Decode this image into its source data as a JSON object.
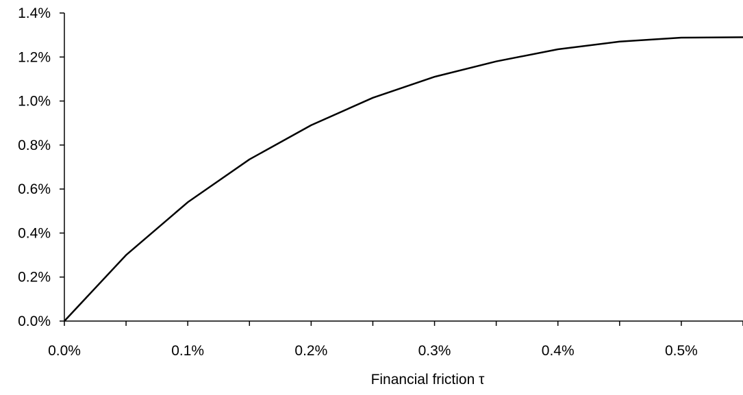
{
  "chart_data": {
    "type": "line",
    "title": "",
    "xlabel": "Financial friction τ",
    "ylabel": "",
    "x": [
      0.0,
      0.05,
      0.1,
      0.15,
      0.2,
      0.25,
      0.3,
      0.35,
      0.4,
      0.45,
      0.5,
      0.55
    ],
    "series": [
      {
        "name": "",
        "values": [
          0.0,
          0.3,
          0.54,
          0.735,
          0.89,
          1.015,
          1.11,
          1.18,
          1.235,
          1.27,
          1.288,
          1.29
        ]
      }
    ],
    "xlim": [
      0.0,
      0.55
    ],
    "ylim": [
      0.0,
      1.4
    ],
    "xticks": [
      0.0,
      0.1,
      0.2,
      0.3,
      0.4,
      0.5
    ],
    "xtick_labels": [
      "0.0%",
      "0.1%",
      "0.2%",
      "0.3%",
      "0.4%",
      "0.5%"
    ],
    "yticks": [
      0.0,
      0.2,
      0.4,
      0.6,
      0.8,
      1.0,
      1.2,
      1.4
    ],
    "ytick_labels": [
      "0.0%",
      "0.2%",
      "0.4%",
      "0.6%",
      "0.8%",
      "1.0%",
      "1.2%",
      "1.4%"
    ],
    "grid": false,
    "legend": "none",
    "line_color": "#000000",
    "axis_color": "#000000"
  }
}
